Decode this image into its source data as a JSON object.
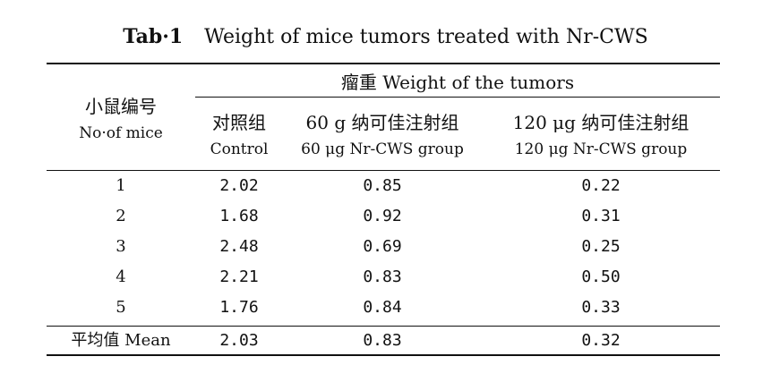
{
  "caption": {
    "label": "Tab·1",
    "text": "Weight of mice tumors treated with Nr-CWS"
  },
  "header": {
    "col1_zh": "小鼠编号",
    "col1_en": "No·of mice",
    "span_title": "瘤重   Weight of the tumors",
    "columns": [
      {
        "zh": "对照组",
        "en": "Control"
      },
      {
        "zh": "60 g 纳可佳注射组",
        "en": "60 μg Nr-CWS group"
      },
      {
        "zh": "120 μg 纳可佳注射组",
        "en": "120 μg Nr-CWS group"
      }
    ]
  },
  "rows": [
    {
      "id": "1",
      "control": "2.02",
      "low": "0.85",
      "high": "0.22"
    },
    {
      "id": "2",
      "control": "1.68",
      "low": "0.92",
      "high": "0.31"
    },
    {
      "id": "3",
      "control": "2.48",
      "low": "0.69",
      "high": "0.25"
    },
    {
      "id": "4",
      "control": "2.21",
      "low": "0.83",
      "high": "0.50"
    },
    {
      "id": "5",
      "control": "1.76",
      "low": "0.84",
      "high": "0.33"
    }
  ],
  "mean": {
    "label": "平均值 Mean",
    "control": "2.03",
    "low": "0.83",
    "high": "0.32"
  }
}
